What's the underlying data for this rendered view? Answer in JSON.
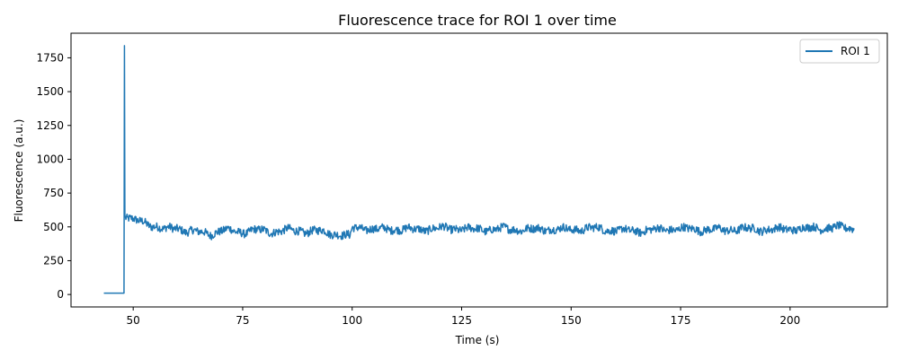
{
  "chart_data": {
    "type": "line",
    "title": "Fluorescence trace for ROI 1 over time",
    "xlabel": "Time (s)",
    "ylabel": "Fluorescence (a.u.)",
    "xlim": [
      35.8,
      222.2
    ],
    "ylim": [
      -92,
      1932
    ],
    "x_ticks": [
      50,
      75,
      100,
      125,
      150,
      175,
      200
    ],
    "y_ticks": [
      0,
      250,
      500,
      750,
      1000,
      1250,
      1500,
      1750
    ],
    "grid": false,
    "legend": {
      "position": "top-right",
      "entries": [
        "ROI 1"
      ]
    },
    "color": "#1f77b4",
    "series": [
      {
        "name": "ROI 1",
        "baseline_before_spike": {
          "x": [
            43.3,
            47.7
          ],
          "y": 10
        },
        "spike": {
          "x": 48.0,
          "y": 1840
        },
        "x": [
          48.2,
          50,
          52,
          55,
          57,
          60,
          62,
          65,
          68,
          70,
          72,
          75,
          78,
          80,
          82,
          85,
          88,
          90,
          92,
          95,
          98,
          99.5,
          100,
          102,
          105,
          110,
          115,
          120,
          125,
          130,
          135,
          140,
          145,
          150,
          155,
          160,
          165,
          170,
          175,
          180,
          185,
          190,
          195,
          200,
          205,
          210,
          214.6
        ],
        "y": [
          580,
          545,
          540,
          505,
          480,
          495,
          470,
          460,
          450,
          470,
          475,
          460,
          475,
          470,
          465,
          475,
          470,
          465,
          470,
          455,
          440,
          425,
          490,
          495,
          480,
          485,
          480,
          490,
          485,
          480,
          485,
          480,
          485,
          480,
          490,
          475,
          470,
          480,
          485,
          480,
          478,
          485,
          480,
          485,
          490,
          495,
          490
        ]
      }
    ]
  }
}
